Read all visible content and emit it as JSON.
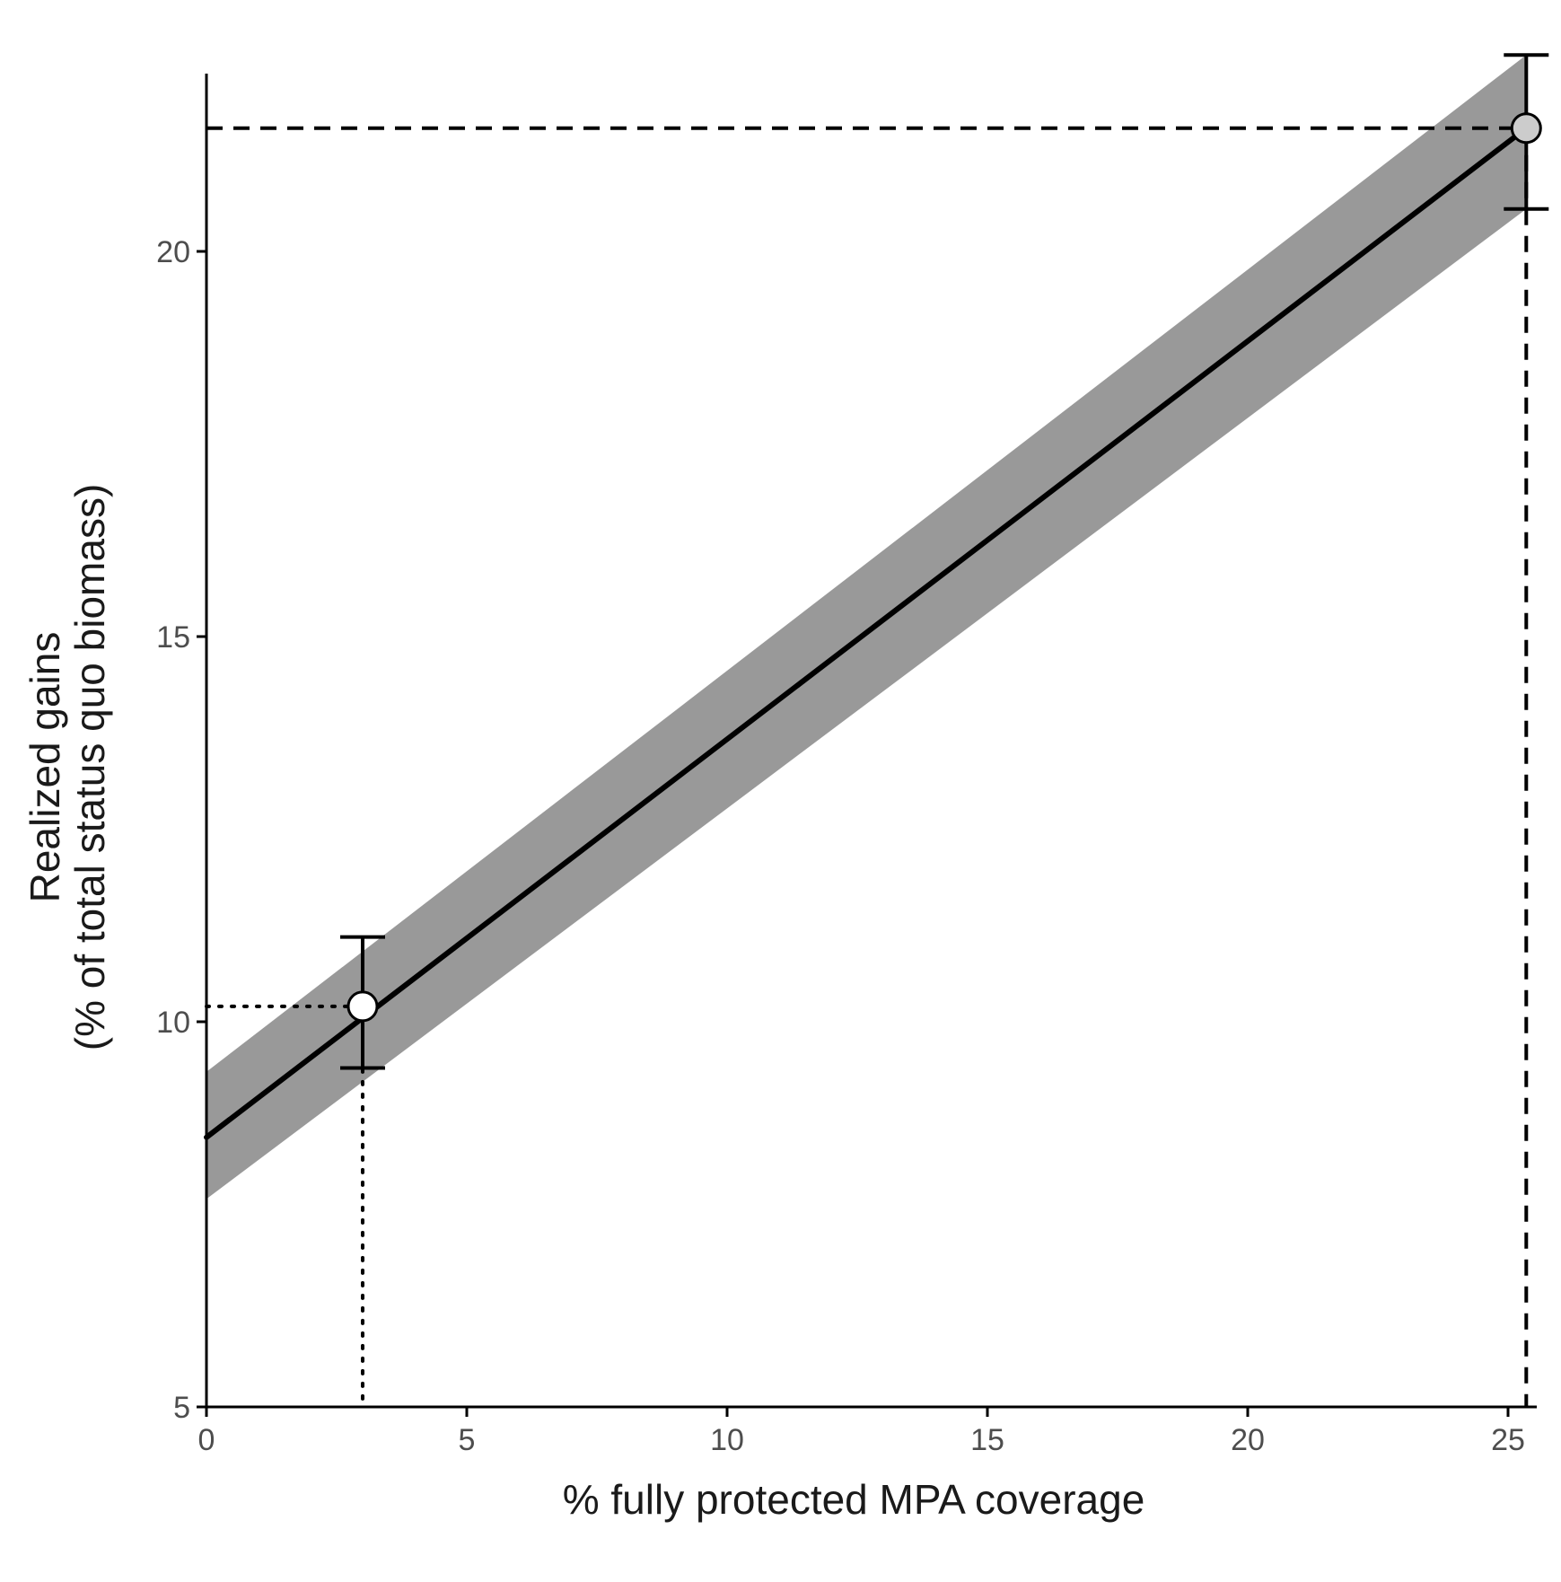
{
  "chart_data": {
    "type": "line",
    "title": "",
    "xlabel": "% fully protected MPA coverage",
    "ylabel_lines": [
      "Realized gains",
      "(% of total status quo biomass)"
    ],
    "xlim": [
      0,
      25.8
    ],
    "ylim": [
      5,
      22.3
    ],
    "x_ticks": [
      0,
      5,
      10,
      15,
      20,
      25
    ],
    "y_ticks": [
      5,
      10,
      15,
      20
    ],
    "grid": false,
    "legend": "none",
    "series": [
      {
        "line_x": [
          0,
          25.35
        ],
        "line_y": [
          8.5,
          21.6
        ],
        "ribbon_lower_y": [
          7.7,
          20.55
        ],
        "ribbon_upper_y": [
          9.35,
          22.55
        ],
        "line_color": "#000000",
        "ribbon_color": "#999999"
      }
    ],
    "points": [
      {
        "x": 3.0,
        "y": 10.2,
        "y_low": 9.4,
        "y_high": 11.1,
        "fill": "#ffffff",
        "guide_style": "dotted"
      },
      {
        "x": 25.35,
        "y": 21.6,
        "y_low": 20.55,
        "y_high": 22.55,
        "fill": "#cccccc",
        "guide_style": "dashed"
      }
    ],
    "colors": {
      "axis": "#000000",
      "tick_text": "#4d4d4d",
      "title_text": "#1a1a1a"
    }
  }
}
